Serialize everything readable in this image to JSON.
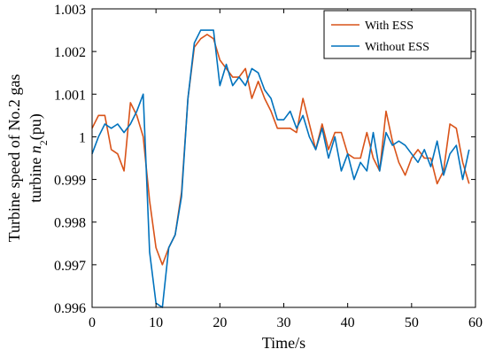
{
  "chart_data": {
    "type": "line",
    "xlabel": "Time/s",
    "ylabel_line1": "Turbine speed of No.2 gas",
    "ylabel_line2_prefix": "turbine ",
    "ylabel_line2_var": "n",
    "ylabel_line2_sub": "2",
    "ylabel_line2_suffix": "(pu)",
    "xlim": [
      0,
      60
    ],
    "ylim": [
      0.996,
      1.003
    ],
    "xticks": [
      0,
      10,
      20,
      30,
      40,
      50,
      60
    ],
    "yticks": [
      0.996,
      0.997,
      0.998,
      0.999,
      1.0,
      1.001,
      1.002,
      1.003
    ],
    "ytick_labels": [
      "0.996",
      "0.997",
      "0.998",
      "0.999",
      "1",
      "1.001",
      "1.002",
      "1.003"
    ],
    "legend_position": "top-right",
    "grid": false,
    "series": [
      {
        "name": "With ESS",
        "color": "#D95319",
        "x": [
          0,
          1,
          2,
          3,
          4,
          5,
          6,
          7,
          8,
          9,
          10,
          11,
          12,
          13,
          14,
          15,
          16,
          17,
          18,
          19,
          20,
          21,
          22,
          23,
          24,
          25,
          26,
          27,
          28,
          29,
          30,
          31,
          32,
          33,
          34,
          35,
          36,
          37,
          38,
          39,
          40,
          41,
          42,
          43,
          44,
          45,
          46,
          47,
          48,
          49,
          50,
          51,
          52,
          53,
          54,
          55,
          56,
          57,
          58,
          59
        ],
        "y": [
          1.0002,
          1.0005,
          1.0005,
          0.9997,
          0.9996,
          0.9992,
          1.0008,
          1.0005,
          1.0,
          0.9985,
          0.9974,
          0.997,
          0.9974,
          0.9977,
          0.9987,
          1.0009,
          1.0021,
          1.0023,
          1.0024,
          1.0023,
          1.0018,
          1.0016,
          1.0014,
          1.0014,
          1.0016,
          1.0009,
          1.0013,
          1.0009,
          1.0006,
          1.0002,
          1.0002,
          1.0002,
          1.0001,
          1.0009,
          1.0003,
          0.9997,
          1.0003,
          0.9997,
          1.0001,
          1.0001,
          0.9996,
          0.9995,
          0.9995,
          1.0001,
          0.9995,
          0.9992,
          1.0006,
          0.9999,
          0.9994,
          0.9991,
          0.9995,
          0.9997,
          0.9995,
          0.9995,
          0.9989,
          0.9992,
          1.0003,
          1.0002,
          0.9994,
          0.9989
        ]
      },
      {
        "name": "Without ESS",
        "color": "#0072BD",
        "x": [
          0,
          1,
          2,
          3,
          4,
          5,
          6,
          7,
          8,
          9,
          10,
          11,
          12,
          13,
          14,
          15,
          16,
          17,
          18,
          19,
          20,
          21,
          22,
          23,
          24,
          25,
          26,
          27,
          28,
          29,
          30,
          31,
          32,
          33,
          34,
          35,
          36,
          37,
          38,
          39,
          40,
          41,
          42,
          43,
          44,
          45,
          46,
          47,
          48,
          49,
          50,
          51,
          52,
          53,
          54,
          55,
          56,
          57,
          58,
          59
        ],
        "y": [
          0.9996,
          1.0,
          1.0003,
          1.0002,
          1.0003,
          1.0001,
          1.0003,
          1.0006,
          1.001,
          0.9973,
          0.9961,
          0.996,
          0.9974,
          0.9977,
          0.9986,
          1.0009,
          1.0022,
          1.0025,
          1.0025,
          1.0025,
          1.0012,
          1.0017,
          1.0012,
          1.0014,
          1.0012,
          1.0016,
          1.0015,
          1.0011,
          1.0009,
          1.0004,
          1.0004,
          1.0006,
          1.0002,
          1.0005,
          1.0,
          0.9997,
          1.0002,
          0.9995,
          1.0,
          0.9992,
          0.9996,
          0.999,
          0.9994,
          0.9992,
          1.0001,
          0.9992,
          1.0001,
          0.9998,
          0.9999,
          0.9998,
          0.9996,
          0.9994,
          0.9997,
          0.9993,
          0.9999,
          0.9991,
          0.9996,
          0.9998,
          0.999,
          0.9997
        ]
      }
    ]
  }
}
